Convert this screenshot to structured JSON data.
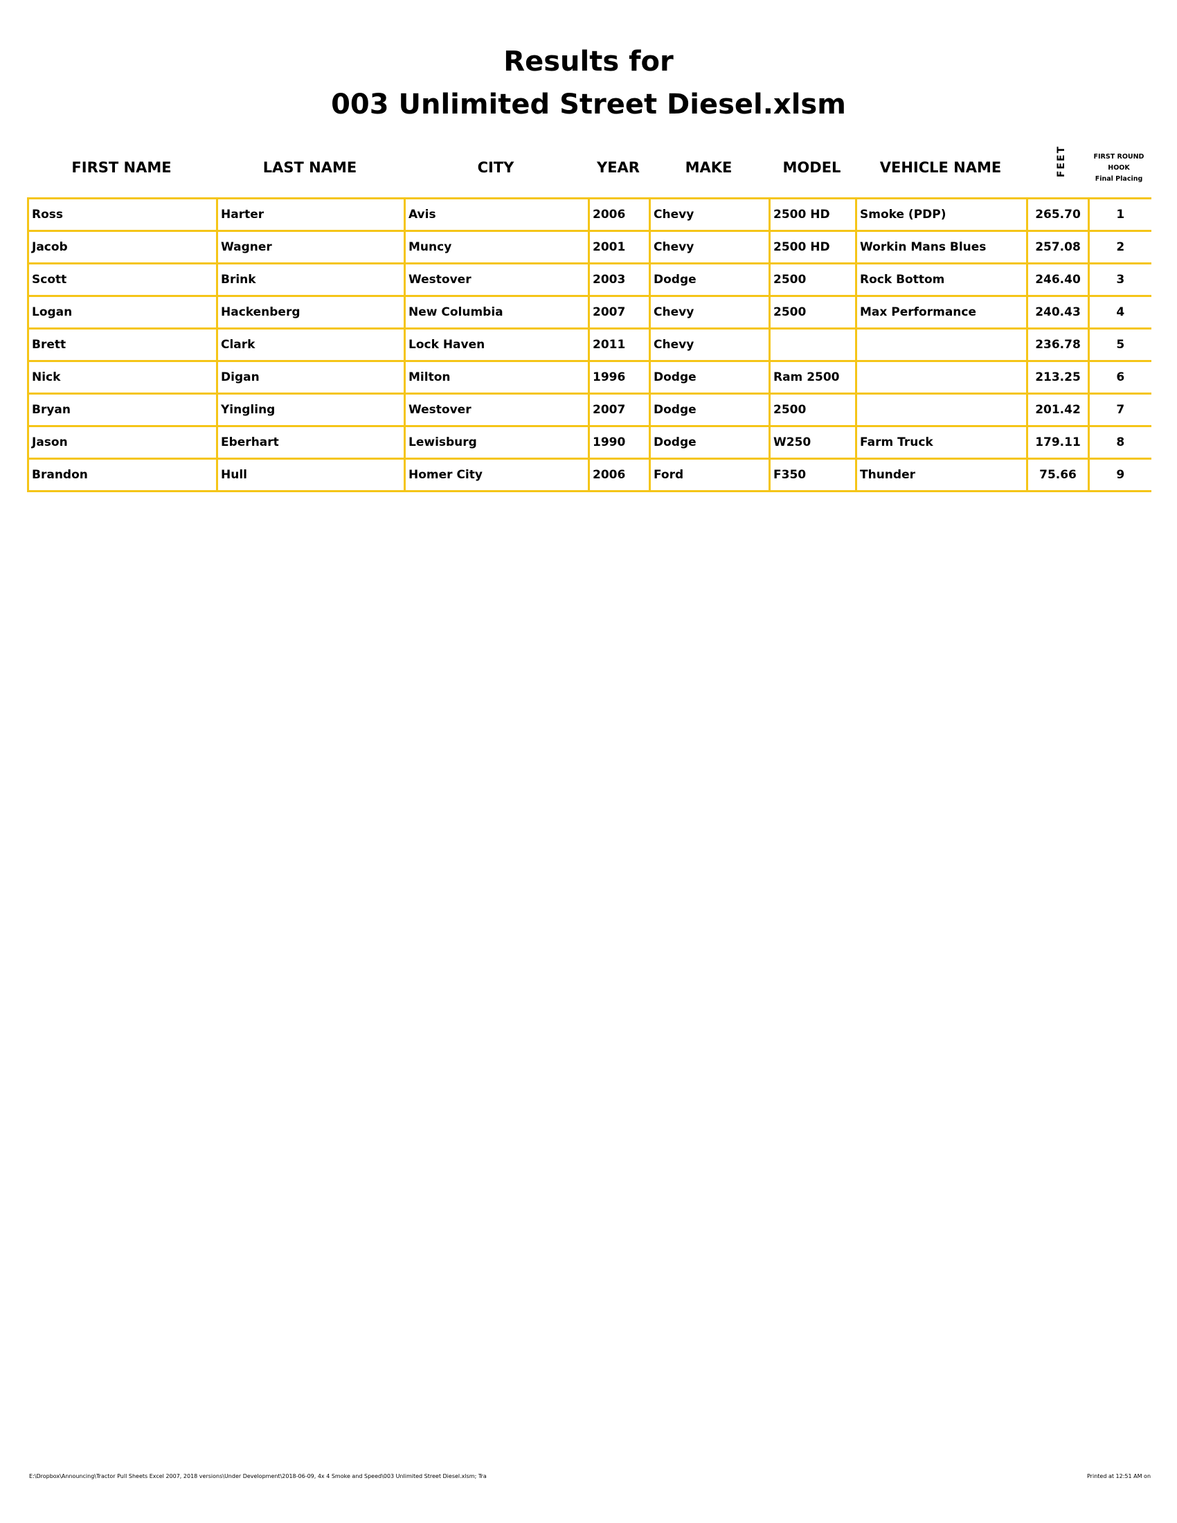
{
  "title": {
    "line1": "Results for",
    "line2": "003 Unlimited Street Diesel.xlsm"
  },
  "columns": {
    "first_name": "FIRST NAME",
    "last_name": "LAST NAME",
    "city": "CITY",
    "year": "YEAR",
    "make": "MAKE",
    "model": "MODEL",
    "vehicle_name": "VEHICLE NAME",
    "feet": "FEET",
    "hook_line1": "FIRST ROUND",
    "hook_line2": "HOOK",
    "hook_line3": "Final Placing"
  },
  "rows": [
    [
      "Ross",
      "Harter",
      "Avis",
      "2006",
      "Chevy",
      "2500 HD",
      "Smoke (PDP)",
      "265.70",
      "1"
    ],
    [
      "Jacob",
      "Wagner",
      "Muncy",
      "2001",
      "Chevy",
      "2500 HD",
      "Workin Mans Blues",
      "257.08",
      "2"
    ],
    [
      "Scott",
      "Brink",
      "Westover",
      "2003",
      "Dodge",
      "2500",
      "Rock Bottom",
      "246.40",
      "3"
    ],
    [
      "Logan",
      "Hackenberg",
      "New Columbia",
      "2007",
      "Chevy",
      "2500",
      "Max Performance",
      "240.43",
      "4"
    ],
    [
      "Brett",
      "Clark",
      "Lock Haven",
      "2011",
      "Chevy",
      "",
      "",
      "236.78",
      "5"
    ],
    [
      "Nick",
      "Digan",
      "Milton",
      "1996",
      "Dodge",
      "Ram 2500",
      "",
      "213.25",
      "6"
    ],
    [
      "Bryan",
      "Yingling",
      "Westover",
      "2007",
      "Dodge",
      "2500",
      "",
      "201.42",
      "7"
    ],
    [
      "Jason",
      "Eberhart",
      "Lewisburg",
      "1990",
      "Dodge",
      "W250",
      "Farm Truck",
      "179.11",
      "8"
    ],
    [
      "Brandon",
      "Hull",
      "Homer City",
      "2006",
      "Ford",
      "F350",
      "Thunder",
      "75.66",
      "9"
    ]
  ],
  "footer": {
    "path": "E:\\Dropbox\\Announcing\\Tractor Pull Sheets Excel 2007, 2018 versions\\Under Development\\2018-06-09, 4x 4 Smoke and Speed\\003 Unlimited Street Diesel.xlsm; Tra",
    "printed": "Printed at 12:51 AM on"
  },
  "colors": {
    "border": "#F5C518"
  }
}
